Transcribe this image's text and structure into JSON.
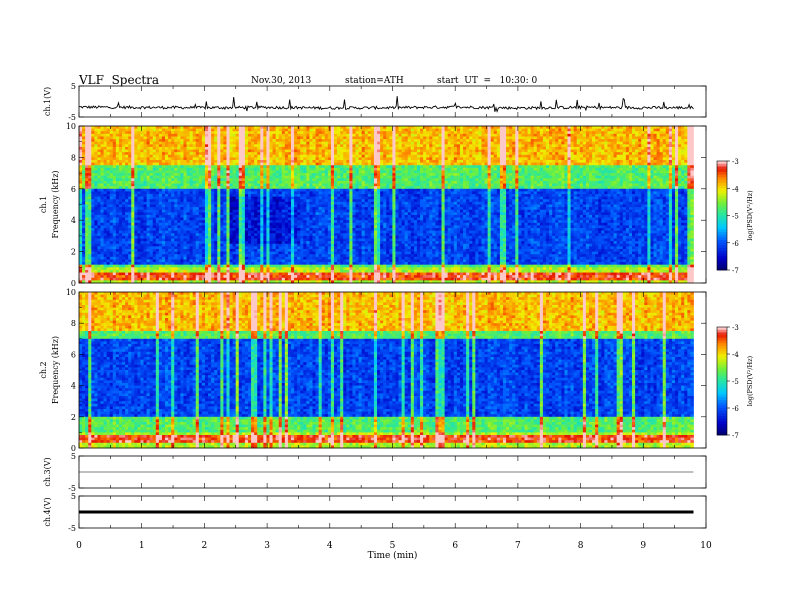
{
  "header": {
    "title": "VLF  Spectra",
    "date": "Nov.30, 2013",
    "station": "station=ATH",
    "start": "start  UT  =   10:30: 0"
  },
  "chart_data": [
    {
      "type": "line",
      "panel": "ch1-waveform",
      "ylabel": "ch.1(V)",
      "ylim": [
        -5,
        5
      ],
      "y_ticklabels": [
        "5",
        "-5"
      ],
      "x": [
        0,
        1,
        2,
        3,
        4,
        5,
        6,
        7,
        8,
        9,
        9.8
      ],
      "y": [
        -1.8,
        -1.9,
        -2.0,
        -1.9,
        -2.1,
        -2.0,
        -1.8,
        -2.1,
        -1.9,
        -2.0,
        -2.0
      ]
    },
    {
      "type": "heatmap",
      "panel": "ch1-spectrogram",
      "ylabel": "ch.1\nFrequency  (kHz)",
      "ylim": [
        0,
        10
      ],
      "y_ticklabels": [
        "0",
        "2",
        "4",
        "6",
        "8",
        "10"
      ],
      "colorbar_label": "log(PSD(V²/Hz)",
      "colorbar_ticks": [
        "-3",
        "-4",
        "-5",
        "-6",
        "-7"
      ],
      "colorbar_range": [
        -7,
        -3
      ],
      "dark_band_khz": [
        1.2,
        6.0
      ],
      "bright_line_khz": 0.4
    },
    {
      "type": "heatmap",
      "panel": "ch2-spectrogram",
      "ylabel": "ch.2\nFrequency  (kHz)",
      "ylim": [
        0,
        10
      ],
      "y_ticklabels": [
        "0",
        "2",
        "4",
        "6",
        "8",
        "10"
      ],
      "colorbar_label": "log(PSD(V²/Hz)",
      "colorbar_ticks": [
        "-3",
        "-4",
        "-5",
        "-6",
        "-7"
      ],
      "colorbar_range": [
        -7,
        -3
      ],
      "dark_band_khz": [
        2.0,
        7.0
      ],
      "bright_line_khz": 0.6
    },
    {
      "type": "line",
      "panel": "ch3-waveform",
      "ylabel": "ch.3(V)",
      "ylim": [
        -5,
        5
      ],
      "y_ticklabels": [
        "5",
        "-5"
      ],
      "x": [
        0,
        9.8
      ],
      "y": [
        0,
        0
      ]
    },
    {
      "type": "line",
      "panel": "ch4-waveform",
      "ylabel": "ch.4(V)",
      "ylim": [
        -5,
        5
      ],
      "y_ticklabels": [
        "5",
        "-5"
      ],
      "x": [
        0,
        9.8
      ],
      "y": [
        0,
        0
      ]
    }
  ],
  "x_axis": {
    "label": "Time  (min)",
    "range": [
      0,
      10
    ],
    "ticklabels": [
      "0",
      "1",
      "2",
      "3",
      "4",
      "5",
      "6",
      "7",
      "8",
      "9",
      "10"
    ]
  },
  "colors": {
    "waveform": "#000000",
    "spectrum_low": "#0000a0",
    "spectrum_high": "#c80000"
  }
}
